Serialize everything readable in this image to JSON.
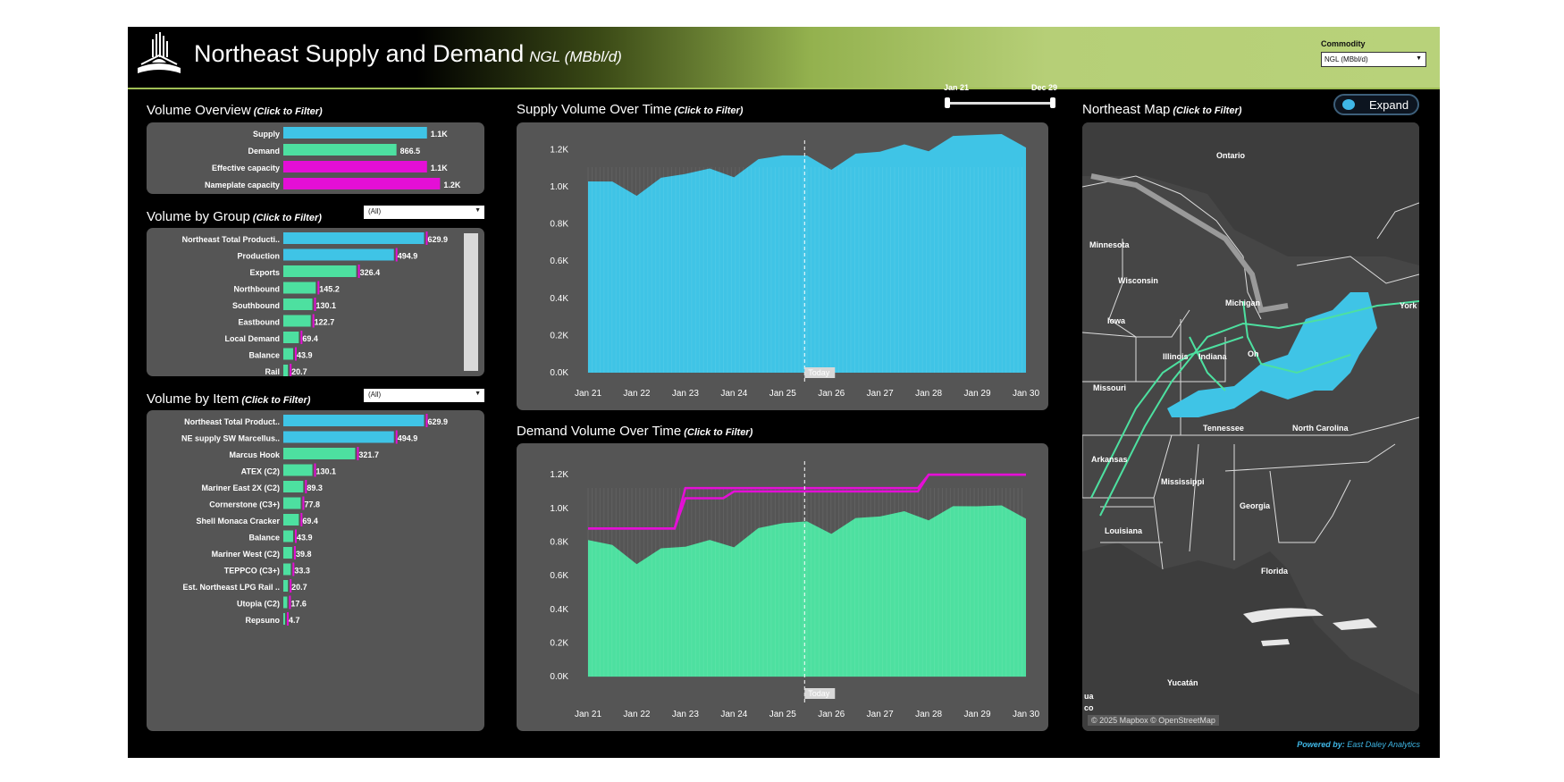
{
  "header": {
    "title": "Northeast Supply and Demand",
    "subtitle": "NGL (MBbl/d)",
    "commodity_label": "Commodity",
    "commodity_value": "NGL (MBbl/d)"
  },
  "colors": {
    "supply": "#3fc4e6",
    "demand": "#4de0a0",
    "capacity": "#e40fd6",
    "panel": "#555555",
    "accent": "#b6cf77"
  },
  "volume_overview": {
    "title": "Volume Overview",
    "hint": "(Click to Filter)",
    "max": 1300,
    "rows": [
      {
        "label": "Supply",
        "value": 1100,
        "text": "1.1K",
        "color": "#3fc4e6"
      },
      {
        "label": "Demand",
        "value": 866.5,
        "text": "866.5",
        "color": "#4de0a0"
      },
      {
        "label": "Effective capacity",
        "value": 1100,
        "text": "1.1K",
        "color": "#e40fd6"
      },
      {
        "label": "Nameplate capacity",
        "value": 1200,
        "text": "1.2K",
        "color": "#e40fd6"
      }
    ]
  },
  "volume_by_group": {
    "title": "Volume by Group",
    "hint": "(Click to Filter)",
    "filter": "(All)",
    "max": 760,
    "rows": [
      {
        "label": "Northeast Total Producti..",
        "value": 629.9,
        "text": "629.9",
        "color": "#3fc4e6"
      },
      {
        "label": "Production",
        "value": 494.9,
        "text": "494.9",
        "color": "#3fc4e6"
      },
      {
        "label": "Exports",
        "value": 326.4,
        "text": "326.4",
        "color": "#4de0a0"
      },
      {
        "label": "Northbound",
        "value": 145.2,
        "text": "145.2",
        "color": "#4de0a0"
      },
      {
        "label": "Southbound",
        "value": 130.1,
        "text": "130.1",
        "color": "#4de0a0"
      },
      {
        "label": "Eastbound",
        "value": 122.7,
        "text": "122.7",
        "color": "#4de0a0"
      },
      {
        "label": "Local Demand",
        "value": 69.4,
        "text": "69.4",
        "color": "#4de0a0"
      },
      {
        "label": "Balance",
        "value": 43.9,
        "text": "43.9",
        "color": "#4de0a0"
      },
      {
        "label": "Rail",
        "value": 20.7,
        "text": "20.7",
        "color": "#4de0a0"
      }
    ]
  },
  "volume_by_item": {
    "title": "Volume by Item",
    "hint": "(Click to Filter)",
    "filter": "(All)",
    "max": 760,
    "rows": [
      {
        "label": "Northeast Total Product..",
        "value": 629.9,
        "text": "629.9",
        "color": "#3fc4e6"
      },
      {
        "label": "NE supply SW Marcellus..",
        "value": 494.9,
        "text": "494.9",
        "color": "#3fc4e6"
      },
      {
        "label": "Marcus Hook",
        "value": 321.7,
        "text": "321.7",
        "color": "#4de0a0"
      },
      {
        "label": "ATEX (C2)",
        "value": 130.1,
        "text": "130.1",
        "color": "#4de0a0"
      },
      {
        "label": "Mariner East 2X (C2)",
        "value": 89.3,
        "text": "89.3",
        "color": "#4de0a0"
      },
      {
        "label": "Cornerstone (C3+)",
        "value": 77.8,
        "text": "77.8",
        "color": "#4de0a0"
      },
      {
        "label": "Shell Monaca Cracker",
        "value": 69.4,
        "text": "69.4",
        "color": "#4de0a0"
      },
      {
        "label": "Balance",
        "value": 43.9,
        "text": "43.9",
        "color": "#4de0a0"
      },
      {
        "label": "Mariner West (C2)",
        "value": 39.8,
        "text": "39.8",
        "color": "#4de0a0"
      },
      {
        "label": "TEPPCO (C3+)",
        "value": 33.3,
        "text": "33.3",
        "color": "#4de0a0"
      },
      {
        "label": "Est. Northeast LPG Rail ..",
        "value": 20.7,
        "text": "20.7",
        "color": "#4de0a0"
      },
      {
        "label": "Utopia (C2)",
        "value": 17.6,
        "text": "17.6",
        "color": "#4de0a0"
      },
      {
        "label": "Repsuno",
        "value": 4.7,
        "text": "4.7",
        "color": "#4de0a0"
      }
    ]
  },
  "date_slider": {
    "start": "Jan 21",
    "end": "Dec 29"
  },
  "supply_chart": {
    "title": "Supply Volume Over Time",
    "hint": "(Click to Filter)",
    "today_label": "Today"
  },
  "demand_chart": {
    "title": "Demand Volume Over Time",
    "hint": "(Click to Filter)",
    "today_label": "Today"
  },
  "chart_data": [
    {
      "type": "area",
      "title": "Supply Volume Over Time",
      "x": [
        "Jan 21",
        "Jan 22",
        "Jan 23",
        "Jan 24",
        "Jan 25",
        "Jan 26",
        "Jan 27",
        "Jan 28",
        "Jan 29",
        "Jan 30"
      ],
      "yticks": [
        "0.0K",
        "0.2K",
        "0.4K",
        "0.6K",
        "0.8K",
        "1.0K",
        "1.2K"
      ],
      "ylim": [
        0,
        1250
      ],
      "today_x": 4.45,
      "series": [
        {
          "values": [
            1000,
            980,
            1040,
            1080,
            1140,
            1120,
            1160,
            1220,
            1250,
            1240
          ]
        }
      ]
    },
    {
      "type": "area",
      "title": "Demand Volume Over Time",
      "x": [
        "Jan 21",
        "Jan 22",
        "Jan 23",
        "Jan 24",
        "Jan 25",
        "Jan 26",
        "Jan 27",
        "Jan 28",
        "Jan 29",
        "Jan 30"
      ],
      "yticks": [
        "0.0K",
        "0.2K",
        "0.4K",
        "0.6K",
        "0.8K",
        "1.0K",
        "1.2K"
      ],
      "ylim": [
        -100,
        1280
      ],
      "today_x": 4.45,
      "series": [
        {
          "type": "area",
          "values": [
            780,
            700,
            740,
            800,
            880,
            880,
            920,
            960,
            980,
            970
          ]
        },
        {
          "type": "step",
          "values": [
            880,
            880,
            1120,
            1120,
            1120,
            1120,
            1120,
            1200,
            1200,
            1200
          ]
        },
        {
          "type": "step",
          "values": [
            880,
            880,
            1060,
            1100,
            1100,
            1100,
            1100,
            1200,
            1200,
            1200
          ]
        }
      ]
    }
  ],
  "map": {
    "title": "Northeast Map",
    "hint": "(Click to Filter)",
    "expand_label": "Expand",
    "attribution": "© 2025 Mapbox © OpenStreetMap",
    "labels": [
      "Ontario",
      "Minnesota",
      "Wisconsin",
      "Michigan",
      "Iowa",
      "Illinois",
      "Indiana",
      "Oh",
      "York",
      "Missouri",
      "Arkansas",
      "Tennessee",
      "North Carolina",
      "Mississippi",
      "Georgia",
      "Louisiana",
      "Florida",
      "Yucatán",
      "ua",
      "co"
    ]
  },
  "footer": {
    "prefix": "Powered by:",
    "brand": "East Daley Analytics"
  }
}
